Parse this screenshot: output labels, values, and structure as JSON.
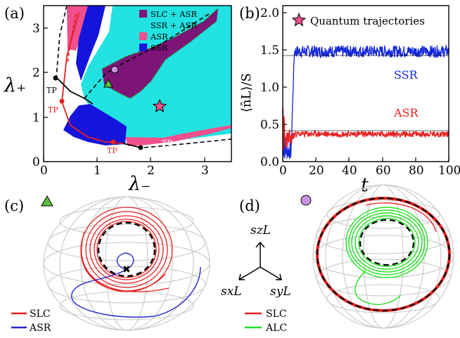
{
  "panels": {
    "a": {
      "label": "(a)",
      "xlabel": "λ₋",
      "ylabel": "λ₊",
      "xticks": [
        "0",
        "1",
        "2",
        "3"
      ],
      "yticks": [
        "0",
        "1",
        "2",
        "3"
      ],
      "legend": [
        "SLC + ASR",
        "SSR + ASR",
        "ASR",
        "SSR"
      ],
      "legend_colors": [
        "#7d1478",
        "#22e2e2",
        "#f0508c",
        "#1414dc"
      ],
      "tp_labels": [
        "TP",
        "TP",
        "TP",
        "TP"
      ]
    },
    "b": {
      "label": "(b)",
      "xlabel": "t",
      "ylabel": "⟨n̂L⟩/S",
      "xticks": [
        "0",
        "20",
        "40",
        "60",
        "80",
        "100"
      ],
      "yticks": [
        "0.0",
        "0.5",
        "1.0",
        "1.5",
        "2.0"
      ],
      "legend": "Quantum trajectories",
      "ssr_label": "SSR",
      "asr_label": "ASR"
    },
    "c": {
      "label": "(c)",
      "legend": [
        "SLC",
        "ASR"
      ],
      "legend_colors": [
        "#e82020",
        "#2828d0"
      ]
    },
    "d": {
      "label": "(d)",
      "legend": [
        "SLC",
        "ALC"
      ],
      "legend_colors": [
        "#e82020",
        "#22e022"
      ]
    },
    "axes3d": {
      "z": "szL",
      "x": "sxL",
      "y": "syL"
    }
  },
  "chart_data": [
    {
      "type": "area",
      "panel": "a",
      "x_range": [
        0,
        3.5
      ],
      "y_range": [
        0,
        3.5
      ],
      "xlabel": "λ₋",
      "ylabel": "λ₊",
      "regions": [
        "SLC + ASR",
        "SSR + ASR",
        "ASR",
        "SSR"
      ],
      "markers": [
        {
          "shape": "star",
          "x": 2.22,
          "y": 1.2
        },
        {
          "shape": "triangle",
          "x": 1.25,
          "y": 1.7
        },
        {
          "shape": "circle",
          "x": 1.35,
          "y": 2.1
        }
      ],
      "tp_points": [
        {
          "x": 0.22,
          "y": 1.82
        },
        {
          "x": 0.32,
          "y": 1.25
        },
        {
          "x": 1.3,
          "y": 0.35
        },
        {
          "x": 1.85,
          "y": 0.22
        }
      ]
    },
    {
      "type": "line",
      "panel": "b",
      "x_range": [
        0,
        100
      ],
      "y_range": [
        0,
        2.1
      ],
      "xlabel": "t",
      "ylabel": "⟨n̂L⟩/S",
      "series": [
        {
          "name": "SSR",
          "steady": 1.48,
          "color": "#1428dc"
        },
        {
          "name": "ASR",
          "steady": 0.37,
          "color": "#e82020"
        }
      ]
    }
  ]
}
